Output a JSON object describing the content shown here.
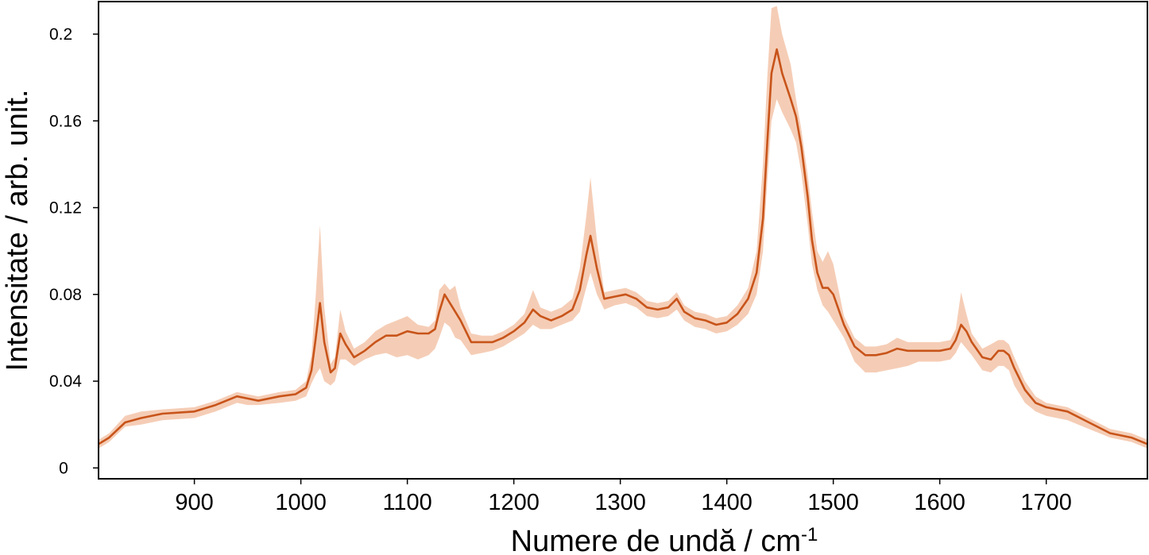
{
  "chart_data": {
    "type": "line",
    "xlabel_main": "Numere de undă / cm",
    "xlabel_sup": "-1",
    "ylabel": "Intensitate / arb. unit.",
    "xlim": [
      810,
      1795
    ],
    "ylim": [
      -0.005,
      0.215
    ],
    "xticks": [
      900,
      1000,
      1100,
      1200,
      1300,
      1400,
      1500,
      1600,
      1700
    ],
    "yticks": [
      0,
      0.04,
      0.08,
      0.12,
      0.16,
      0.2
    ],
    "ytick_labels": [
      "0",
      "0.04",
      "0.08",
      "0.12",
      "0.16",
      "0.2"
    ],
    "grid": false,
    "line_color": "#c8541a",
    "band_color": "#f5cdb6",
    "series": [
      {
        "x": [
          810,
          820,
          835,
          850,
          870,
          900,
          920,
          940,
          950,
          960,
          980,
          995,
          1005,
          1010,
          1014,
          1018,
          1022,
          1028,
          1032,
          1037,
          1042,
          1050,
          1060,
          1070,
          1080,
          1090,
          1100,
          1110,
          1120,
          1126,
          1130,
          1135,
          1140,
          1145,
          1150,
          1160,
          1170,
          1180,
          1190,
          1200,
          1210,
          1218,
          1225,
          1235,
          1245,
          1255,
          1262,
          1268,
          1272,
          1278,
          1285,
          1295,
          1305,
          1315,
          1325,
          1335,
          1345,
          1353,
          1360,
          1370,
          1380,
          1390,
          1400,
          1410,
          1420,
          1428,
          1434,
          1438,
          1442,
          1447,
          1452,
          1460,
          1465,
          1470,
          1476,
          1480,
          1485,
          1490,
          1495,
          1500,
          1510,
          1520,
          1530,
          1540,
          1550,
          1560,
          1570,
          1580,
          1590,
          1600,
          1610,
          1615,
          1620,
          1625,
          1630,
          1640,
          1648,
          1655,
          1660,
          1665,
          1670,
          1680,
          1690,
          1700,
          1720,
          1740,
          1760,
          1780,
          1795
        ],
        "y": [
          0.011,
          0.014,
          0.021,
          0.023,
          0.025,
          0.026,
          0.029,
          0.033,
          0.032,
          0.031,
          0.033,
          0.034,
          0.037,
          0.045,
          0.06,
          0.076,
          0.058,
          0.044,
          0.046,
          0.062,
          0.057,
          0.051,
          0.054,
          0.058,
          0.061,
          0.061,
          0.063,
          0.062,
          0.062,
          0.064,
          0.072,
          0.08,
          0.076,
          0.072,
          0.068,
          0.058,
          0.058,
          0.058,
          0.06,
          0.063,
          0.067,
          0.073,
          0.07,
          0.068,
          0.07,
          0.073,
          0.082,
          0.098,
          0.107,
          0.092,
          0.078,
          0.079,
          0.08,
          0.078,
          0.074,
          0.073,
          0.074,
          0.078,
          0.072,
          0.069,
          0.068,
          0.066,
          0.067,
          0.071,
          0.078,
          0.09,
          0.115,
          0.15,
          0.182,
          0.193,
          0.182,
          0.17,
          0.162,
          0.148,
          0.125,
          0.105,
          0.09,
          0.083,
          0.083,
          0.08,
          0.066,
          0.056,
          0.052,
          0.052,
          0.053,
          0.055,
          0.054,
          0.054,
          0.054,
          0.054,
          0.055,
          0.059,
          0.066,
          0.063,
          0.058,
          0.051,
          0.05,
          0.054,
          0.054,
          0.052,
          0.046,
          0.036,
          0.03,
          0.028,
          0.026,
          0.021,
          0.016,
          0.014,
          0.011
        ],
        "upper": [
          0.013,
          0.016,
          0.024,
          0.026,
          0.027,
          0.028,
          0.031,
          0.035,
          0.034,
          0.033,
          0.035,
          0.036,
          0.04,
          0.052,
          0.08,
          0.112,
          0.074,
          0.048,
          0.051,
          0.073,
          0.063,
          0.055,
          0.058,
          0.063,
          0.066,
          0.068,
          0.07,
          0.066,
          0.065,
          0.068,
          0.082,
          0.085,
          0.082,
          0.084,
          0.074,
          0.062,
          0.061,
          0.061,
          0.063,
          0.066,
          0.071,
          0.082,
          0.074,
          0.072,
          0.074,
          0.078,
          0.092,
          0.116,
          0.134,
          0.105,
          0.081,
          0.082,
          0.083,
          0.081,
          0.077,
          0.076,
          0.077,
          0.081,
          0.075,
          0.072,
          0.071,
          0.069,
          0.07,
          0.075,
          0.083,
          0.1,
          0.14,
          0.18,
          0.212,
          0.213,
          0.2,
          0.186,
          0.17,
          0.156,
          0.135,
          0.118,
          0.1,
          0.095,
          0.1,
          0.094,
          0.07,
          0.06,
          0.056,
          0.056,
          0.057,
          0.06,
          0.058,
          0.058,
          0.058,
          0.058,
          0.059,
          0.064,
          0.081,
          0.071,
          0.062,
          0.055,
          0.057,
          0.059,
          0.059,
          0.057,
          0.051,
          0.04,
          0.033,
          0.03,
          0.028,
          0.023,
          0.018,
          0.016,
          0.013
        ],
        "lower": [
          0.009,
          0.012,
          0.019,
          0.02,
          0.022,
          0.023,
          0.026,
          0.03,
          0.029,
          0.029,
          0.03,
          0.031,
          0.033,
          0.039,
          0.043,
          0.046,
          0.04,
          0.038,
          0.04,
          0.05,
          0.05,
          0.047,
          0.05,
          0.052,
          0.053,
          0.051,
          0.052,
          0.05,
          0.052,
          0.055,
          0.06,
          0.067,
          0.065,
          0.06,
          0.059,
          0.052,
          0.053,
          0.054,
          0.056,
          0.059,
          0.062,
          0.066,
          0.064,
          0.064,
          0.066,
          0.068,
          0.072,
          0.083,
          0.09,
          0.08,
          0.073,
          0.075,
          0.076,
          0.074,
          0.07,
          0.069,
          0.07,
          0.073,
          0.068,
          0.065,
          0.064,
          0.062,
          0.063,
          0.066,
          0.071,
          0.08,
          0.1,
          0.132,
          0.16,
          0.17,
          0.164,
          0.156,
          0.15,
          0.136,
          0.112,
          0.094,
          0.082,
          0.075,
          0.072,
          0.068,
          0.06,
          0.049,
          0.044,
          0.044,
          0.045,
          0.046,
          0.047,
          0.049,
          0.049,
          0.049,
          0.05,
          0.053,
          0.058,
          0.055,
          0.052,
          0.045,
          0.044,
          0.047,
          0.047,
          0.045,
          0.038,
          0.03,
          0.026,
          0.024,
          0.022,
          0.018,
          0.014,
          0.012,
          0.009
        ]
      }
    ]
  }
}
